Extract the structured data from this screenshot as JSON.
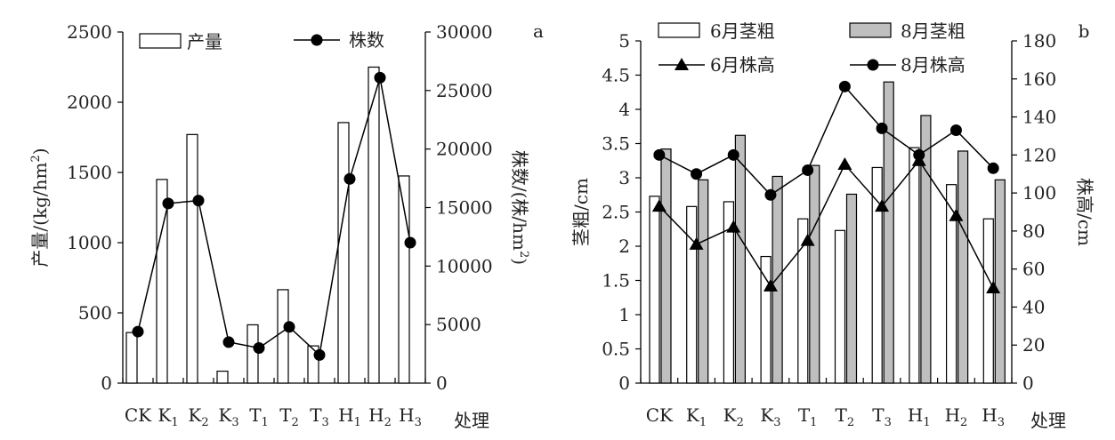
{
  "chart_data": [
    {
      "type": "bar",
      "panel_label": "a",
      "categories": [
        "CK",
        "K1",
        "K2",
        "K3",
        "T1",
        "T2",
        "T3",
        "H1",
        "H2",
        "H3"
      ],
      "xlabel": "处理",
      "ylabel": "产量/(kg/hm2)",
      "y2label": "株数/(株/hm2)",
      "ylim": [
        0,
        2500
      ],
      "y2lim": [
        0,
        30000
      ],
      "yticks": [
        0,
        500,
        1000,
        1500,
        2000,
        2500
      ],
      "y2ticks": [
        0,
        5000,
        10000,
        15000,
        20000,
        25000,
        30000
      ],
      "legend_position": "top",
      "grid": false,
      "series": [
        {
          "name": "产量",
          "kind": "bar",
          "axis": "left",
          "fill": "#ffffff",
          "values": [
            360,
            1450,
            1770,
            85,
            415,
            665,
            265,
            1855,
            2250,
            1475
          ]
        },
        {
          "name": "株数",
          "kind": "line",
          "axis": "right",
          "marker": "circle",
          "values": [
            4400,
            15350,
            15600,
            3500,
            3000,
            4800,
            2400,
            17450,
            26100,
            12000
          ]
        }
      ]
    },
    {
      "type": "bar",
      "panel_label": "b",
      "categories": [
        "CK",
        "K1",
        "K2",
        "K3",
        "T1",
        "T2",
        "T3",
        "H1",
        "H2",
        "H3"
      ],
      "xlabel": "处理",
      "ylabel": "茎粗/cm",
      "y2label": "株高/cm",
      "ylim": [
        0,
        5
      ],
      "y2lim": [
        0,
        180
      ],
      "yticks": [
        "0",
        "0.5",
        "1",
        "1.5",
        "2",
        "2.5",
        "3",
        "3.5",
        "4",
        "4.5",
        "5"
      ],
      "y2ticks": [
        0,
        20,
        40,
        60,
        80,
        100,
        120,
        140,
        160,
        180
      ],
      "legend_position": "top",
      "grid": false,
      "series": [
        {
          "name": "6月茎粗",
          "kind": "bar",
          "axis": "left",
          "fill": "#ffffff",
          "values": [
            2.73,
            2.58,
            2.65,
            1.85,
            2.4,
            2.23,
            3.15,
            3.44,
            2.9,
            2.4
          ]
        },
        {
          "name": "8月茎粗",
          "kind": "bar",
          "axis": "left",
          "fill": "#bfbfbf",
          "values": [
            3.42,
            2.97,
            3.62,
            3.02,
            3.18,
            2.76,
            4.4,
            3.91,
            3.39,
            2.97
          ]
        },
        {
          "name": "6月株高",
          "kind": "line",
          "axis": "right",
          "marker": "triangle",
          "values": [
            93,
            73,
            82,
            51,
            75,
            115,
            93,
            117,
            88,
            50
          ]
        },
        {
          "name": "8月株高",
          "kind": "line",
          "axis": "right",
          "marker": "circle",
          "values": [
            120,
            110,
            120,
            99,
            112,
            156,
            134,
            120,
            133,
            113
          ]
        }
      ]
    }
  ]
}
